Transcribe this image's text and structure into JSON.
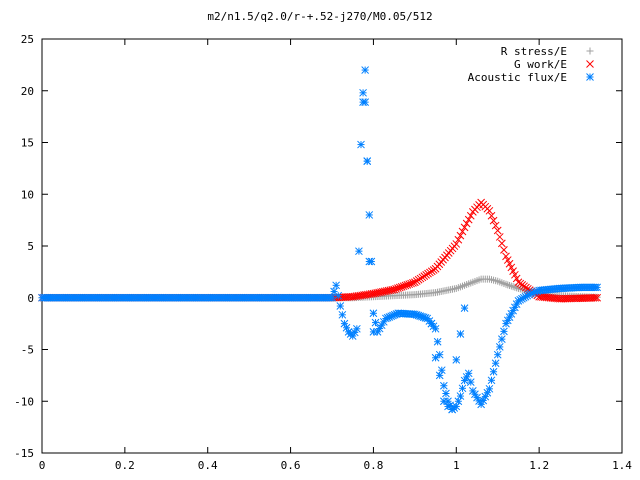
{
  "chart_data": {
    "type": "scatter",
    "title": "m2/n1.5/q2.0/r-+.52-j270/M0.05/512",
    "xlabel": "",
    "ylabel": "",
    "xlim": [
      0,
      1.4
    ],
    "ylim": [
      -15,
      25
    ],
    "xticks": [
      0,
      0.2,
      0.4,
      0.6,
      0.8,
      1,
      1.2,
      1.4
    ],
    "yticks": [
      -15,
      -10,
      -5,
      0,
      5,
      10,
      15,
      20,
      25
    ],
    "xtick_labels": [
      "0",
      "0.2",
      "0.4",
      "0.6",
      "0.8",
      "1",
      "1.2",
      "1.4"
    ],
    "ytick_labels": [
      "-15",
      "-10",
      "-5",
      "0",
      "5",
      "10",
      "15",
      "20",
      "25"
    ],
    "grid": false,
    "legend_position": "top-right",
    "legend": [
      "R stress/E",
      "G work/E",
      "Acoustic flux/E"
    ],
    "series": [
      {
        "name": "R stress/E",
        "marker": "plus",
        "color": "#a0a0a0",
        "x": [
          0.0,
          0.2,
          0.4,
          0.6,
          0.7,
          0.75,
          0.8,
          0.85,
          0.9,
          0.95,
          1.0,
          1.02,
          1.04,
          1.06,
          1.08,
          1.1,
          1.12,
          1.15,
          1.2,
          1.25,
          1.3,
          1.34
        ],
        "y": [
          0.0,
          0.0,
          0.0,
          0.0,
          0.0,
          0.0,
          0.1,
          0.2,
          0.3,
          0.5,
          0.9,
          1.2,
          1.5,
          1.8,
          1.8,
          1.6,
          1.3,
          0.9,
          0.4,
          0.2,
          0.1,
          0.05
        ]
      },
      {
        "name": "G work/E",
        "marker": "cross",
        "color": "#ff0000",
        "x": [
          0.0,
          0.2,
          0.4,
          0.6,
          0.7,
          0.75,
          0.8,
          0.85,
          0.9,
          0.95,
          1.0,
          1.02,
          1.04,
          1.06,
          1.08,
          1.1,
          1.12,
          1.15,
          1.2,
          1.25,
          1.3,
          1.34
        ],
        "y": [
          0.0,
          0.0,
          0.0,
          0.0,
          0.0,
          0.1,
          0.4,
          0.8,
          1.5,
          2.8,
          5.2,
          6.8,
          8.3,
          9.2,
          8.4,
          6.5,
          4.0,
          1.5,
          0.1,
          -0.1,
          -0.05,
          0.0
        ]
      },
      {
        "name": "Acoustic flux/E",
        "marker": "star",
        "color": "#0080ff",
        "x": [
          0.0,
          0.2,
          0.4,
          0.6,
          0.7,
          0.71,
          0.72,
          0.73,
          0.74,
          0.75,
          0.76,
          0.765,
          0.77,
          0.775,
          0.78,
          0.785,
          0.79,
          0.795,
          0.8,
          0.81,
          0.83,
          0.86,
          0.9,
          0.93,
          0.95,
          0.96,
          0.97,
          0.98,
          0.99,
          1.0,
          1.01,
          1.02,
          1.03,
          1.04,
          1.06,
          1.08,
          1.1,
          1.12,
          1.15,
          1.18,
          1.2,
          1.25,
          1.3,
          1.34
        ],
        "y": [
          0.0,
          0.0,
          0.0,
          0.0,
          0.0,
          1.2,
          -0.8,
          -2.5,
          -3.3,
          -3.7,
          -3.0,
          4.5,
          14.8,
          19.8,
          22.0,
          13.2,
          8.0,
          3.5,
          -1.5,
          -3.3,
          -2.0,
          -1.5,
          -1.6,
          -2.0,
          -3.0,
          -5.5,
          -8.5,
          -10.0,
          -10.8,
          -10.5,
          -9.5,
          -8.0,
          -7.3,
          -9.0,
          -10.3,
          -8.8,
          -5.5,
          -2.5,
          -0.3,
          0.4,
          0.7,
          0.9,
          1.0,
          1.0
        ]
      },
      {
        "name": "",
        "marker": "star",
        "color": "#0080ff",
        "x": [
          0.775,
          0.78,
          0.785,
          0.79,
          0.8,
          0.94,
          0.95,
          0.96,
          0.97,
          0.98,
          0.99,
          1.0,
          1.01,
          1.02
        ],
        "y": [
          18.9,
          18.9,
          13.2,
          3.5,
          -3.3,
          -2.5,
          -5.8,
          -7.5,
          -10.0,
          -10.5,
          -10.8,
          -6.0,
          -3.5,
          -1.0
        ]
      }
    ]
  }
}
